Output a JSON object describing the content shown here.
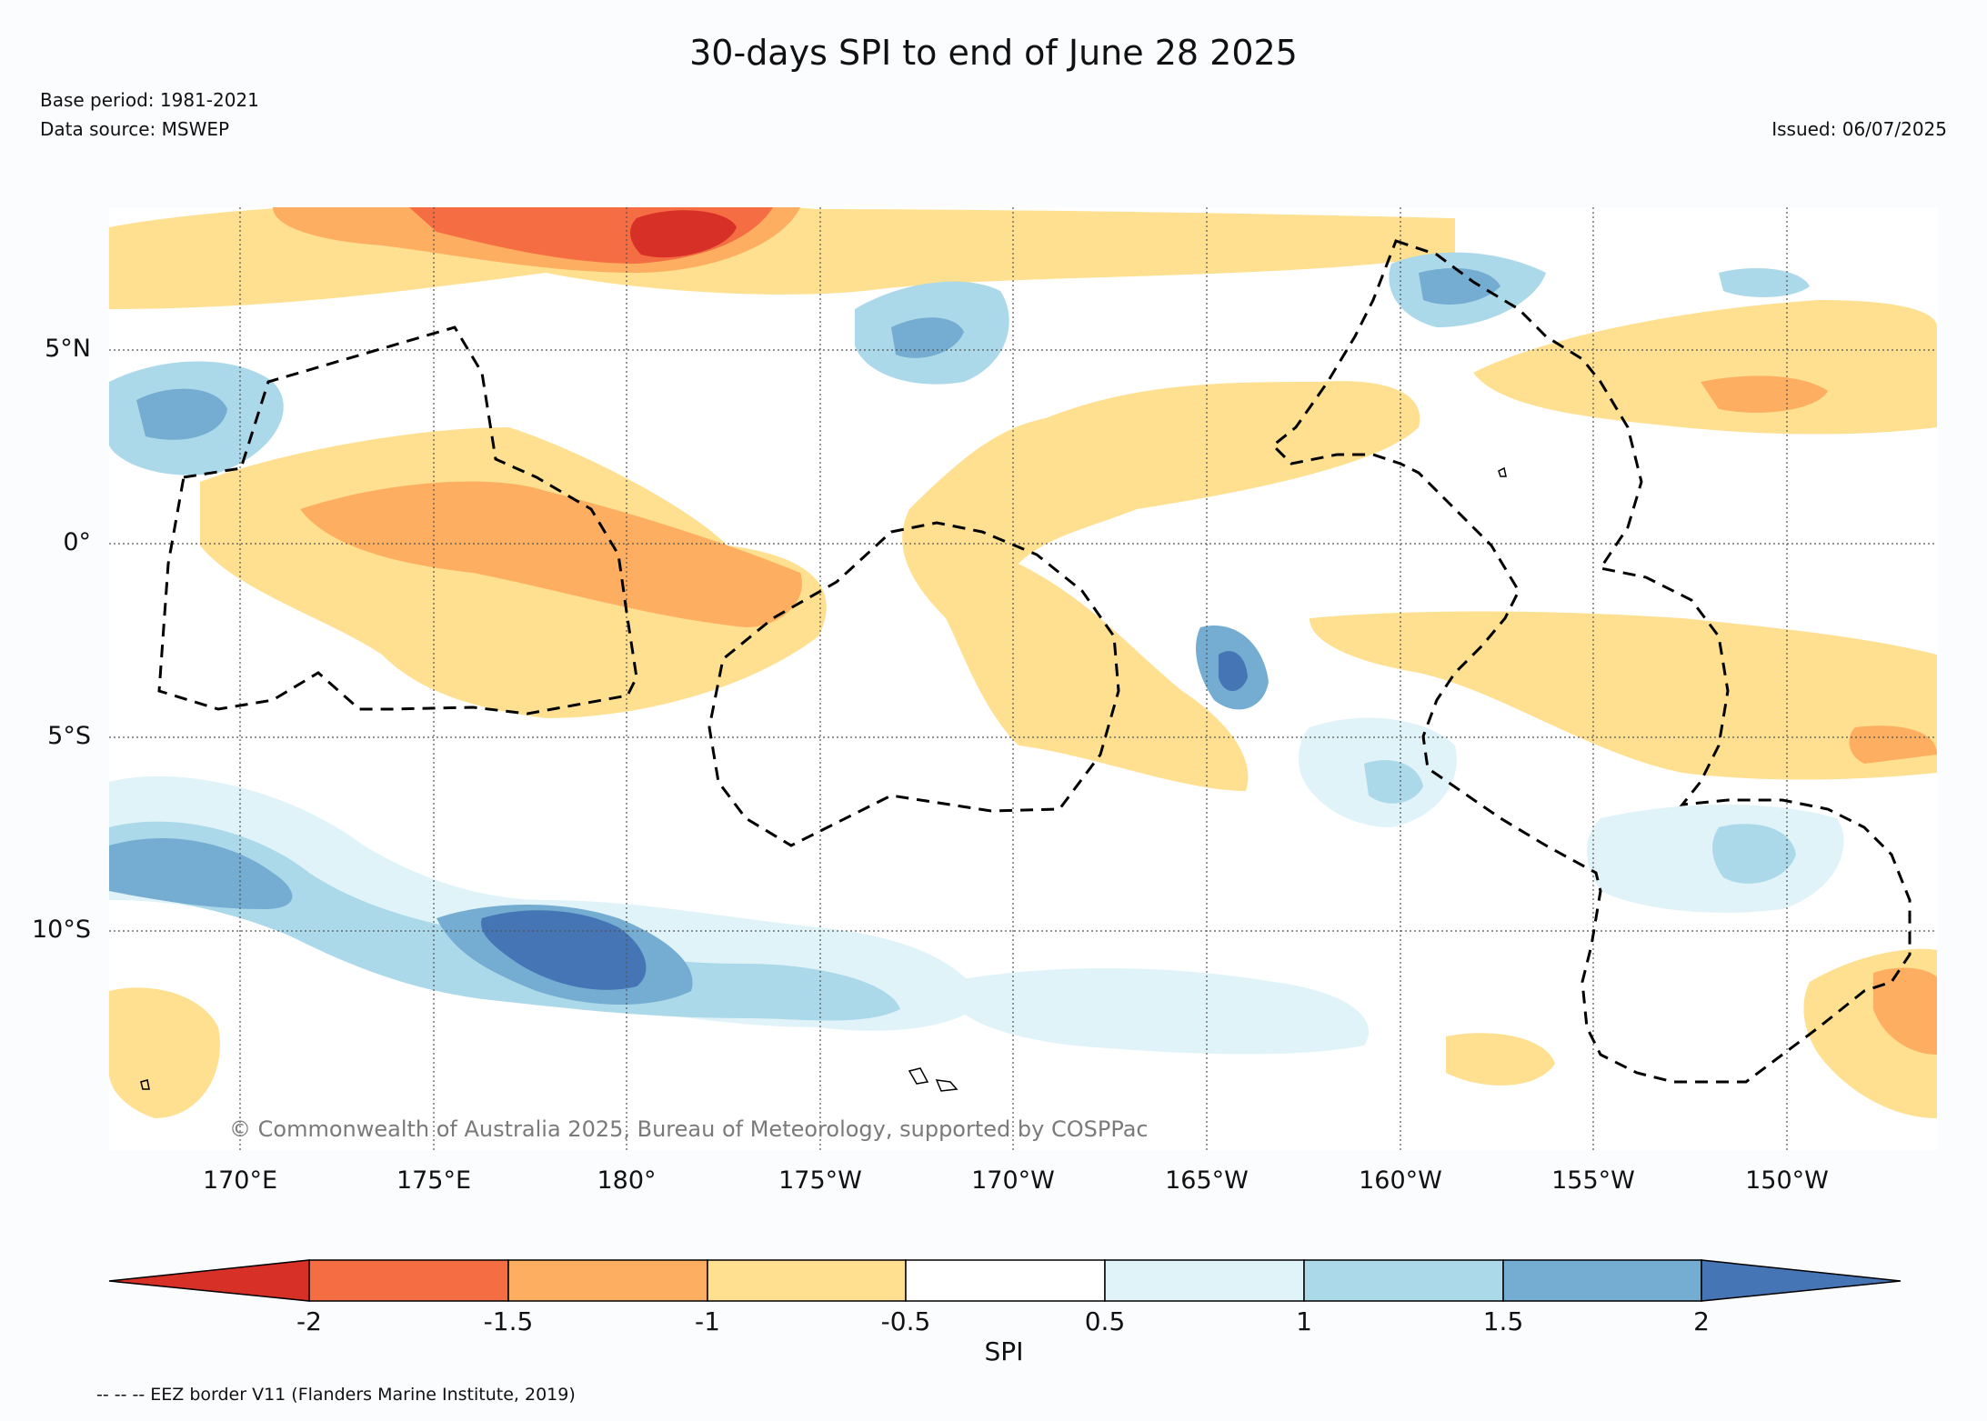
{
  "title": "30-days SPI to end of June 28 2025",
  "base_period": "Base period: 1981-2021",
  "data_source": "Data source: MSWEP",
  "issued": "Issued: 06/07/2025",
  "credit": "© Commonwealth of Australia 2025, Bureau of Meteorology, supported by COSPPac",
  "legend_note": "-- -- -- EEZ border V11 (Flanders Marine Institute, 2019)",
  "lat_labels": [
    "5°N",
    "0°",
    "5°S",
    "10°S"
  ],
  "lon_labels": [
    "170°E",
    "175°E",
    "180°",
    "175°W",
    "170°W",
    "165°W",
    "160°W",
    "155°W",
    "150°W"
  ],
  "colorbar": {
    "label": "SPI",
    "ticks": [
      "-2",
      "-1.5",
      "-1",
      "-0.5",
      "0.5",
      "1",
      "1.5",
      "2"
    ],
    "colors": [
      "#d73027",
      "#f46d43",
      "#fdae61",
      "#fee090",
      "#ffffff",
      "#e0f3f8",
      "#abd9e9",
      "#74add1",
      "#4575b4"
    ]
  }
}
